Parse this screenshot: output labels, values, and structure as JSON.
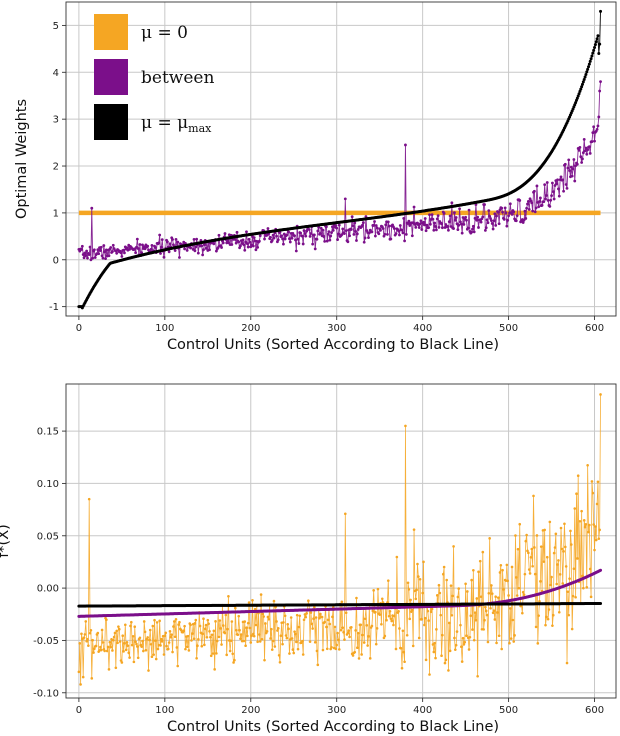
{
  "colors": {
    "orange": "#f5a623",
    "purple": "#7b0f8a",
    "black": "#000000",
    "grid": "#c8c8c8"
  },
  "chart_data": [
    {
      "type": "line",
      "id": "top",
      "title": "",
      "xlabel": "Control Units (Sorted According to Black Line)",
      "ylabel": "Optimal Weights",
      "xlim": [
        -15,
        625
      ],
      "ylim": [
        -1.2,
        5.5
      ],
      "xticks": [
        0,
        100,
        200,
        300,
        400,
        500,
        600
      ],
      "yticks": [
        -1,
        0,
        1,
        2,
        3,
        4,
        5
      ],
      "grid": true,
      "legend": {
        "placement": "top-left",
        "entries": [
          {
            "label": "μ = 0",
            "color": "orange"
          },
          {
            "label": "between",
            "color": "purple"
          },
          {
            "label": "μ = μ",
            "sub": "max",
            "color": "black"
          }
        ]
      },
      "n_points": 608,
      "series": [
        {
          "name": "μ = 0",
          "color": "orange",
          "constant": 1.0
        },
        {
          "name": "between",
          "color": "purple",
          "description": "noisy curve rising from ~0.1 to ~3.8",
          "outliers": [
            [
              15,
              1.1
            ],
            [
              310,
              1.3
            ],
            [
              380,
              2.45
            ]
          ]
        },
        {
          "name": "μ = μmax",
          "color": "black",
          "description": "sorted curve from -1.0 to 5.3"
        }
      ]
    },
    {
      "type": "line",
      "id": "bottom",
      "title": "",
      "xlabel": "Control Units (Sorted According to Black Line)",
      "ylabel": "f*(X)",
      "xlim": [
        -15,
        625
      ],
      "ylim": [
        -0.105,
        0.195
      ],
      "xticks": [
        0,
        100,
        200,
        300,
        400,
        500,
        600
      ],
      "yticks": [
        -0.1,
        -0.05,
        0.0,
        0.05,
        0.1,
        0.15
      ],
      "ytick_labels": [
        "-0.10",
        "-0.05",
        "0.00",
        "0.05",
        "0.10",
        "0.15"
      ],
      "grid": true,
      "n_points": 608,
      "series": [
        {
          "name": "μ = 0",
          "color": "orange",
          "description": "noisy, trending from ~-0.06 to ~0.1",
          "outliers": [
            [
              12,
              0.085
            ],
            [
              310,
              0.071
            ],
            [
              380,
              0.155
            ],
            [
              607,
              0.185
            ]
          ]
        },
        {
          "name": "between",
          "color": "purple",
          "description": "smooth from -0.027 to 0.015"
        },
        {
          "name": "μ = μmax",
          "color": "black",
          "description": "nearly flat from -0.017 to -0.015"
        }
      ]
    }
  ]
}
